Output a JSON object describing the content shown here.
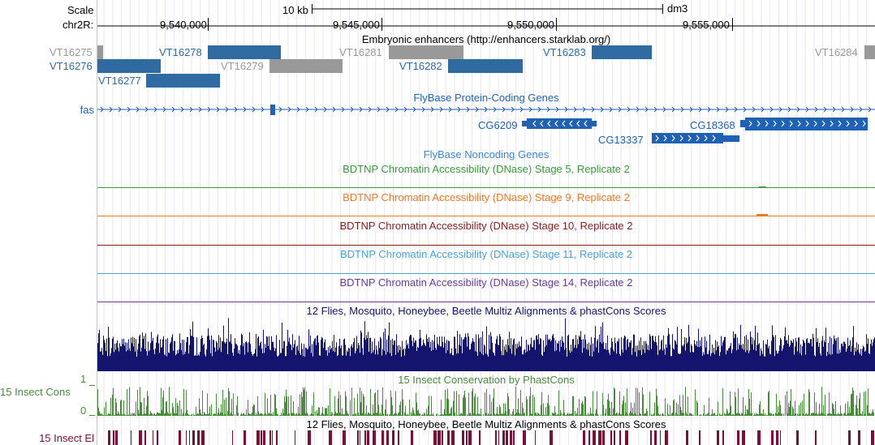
{
  "ruler": {
    "scale_label": "Scale",
    "chrom_label": "chr2R:",
    "scale_bar_label": "10 kb",
    "assembly": "dm3",
    "positions": [
      "9,540,000",
      "9,545,000",
      "9,550,000",
      "9,555,000"
    ]
  },
  "tracks": {
    "enhancers": {
      "title": "Embryonic enhancers (http://enhancers.starklab.org/)",
      "items": [
        {
          "label": "VT16275",
          "color": "#999999"
        },
        {
          "label": "VT16276",
          "color": "#2f6aa0"
        },
        {
          "label": "VT16277",
          "color": "#2f6aa0"
        },
        {
          "label": "VT16278",
          "color": "#2f6aa0"
        },
        {
          "label": "VT16279",
          "color": "#999999"
        },
        {
          "label": "VT16281",
          "color": "#999999"
        },
        {
          "label": "VT16282",
          "color": "#2f6aa0"
        },
        {
          "label": "VT16283",
          "color": "#2f6aa0"
        },
        {
          "label": "VT16284",
          "color": "#999999"
        }
      ]
    },
    "protein_genes": {
      "title": "FlyBase Protein-Coding Genes",
      "genes": [
        "fas",
        "CG6209",
        "CG13337",
        "CG18368"
      ],
      "color": "#1f62b4"
    },
    "noncoding": {
      "title": "FlyBase Noncoding Genes",
      "color": "#3b87d0"
    },
    "dnase": [
      {
        "title": "BDTNP Chromatin Accessibility (DNase) Stage 5, Replicate 2",
        "color": "#3a9a3a"
      },
      {
        "title": "BDTNP Chromatin Accessibility (DNase) Stage 9, Replicate 2",
        "color": "#ee7a22"
      },
      {
        "title": "BDTNP Chromatin Accessibility (DNase) Stage 10, Replicate 2",
        "color": "#8b1c1c"
      },
      {
        "title": "BDTNP Chromatin Accessibility (DNase) Stage 11, Replicate 2",
        "color": "#4aa3d4"
      },
      {
        "title": "BDTNP Chromatin Accessibility (DNase) Stage 14, Replicate 2",
        "color": "#6a3a9a"
      }
    ],
    "multiz": {
      "title": "12 Flies, Mosquito, Honeybee, Beetle Multiz Alignments & phastCons Scores",
      "color": "#14146e"
    },
    "phastcons": {
      "title": "15 Insect Conservation by PhastCons",
      "side_label": "15 Insect Cons",
      "y_max": "1",
      "y_min": "0",
      "color": "#4a8a3c"
    },
    "elements": {
      "title": "12 Flies, Mosquito, Honeybee, Beetle Multiz Alignments & phastCons Scores",
      "side_label": "15 Insect El",
      "color": "#7a1033"
    }
  }
}
